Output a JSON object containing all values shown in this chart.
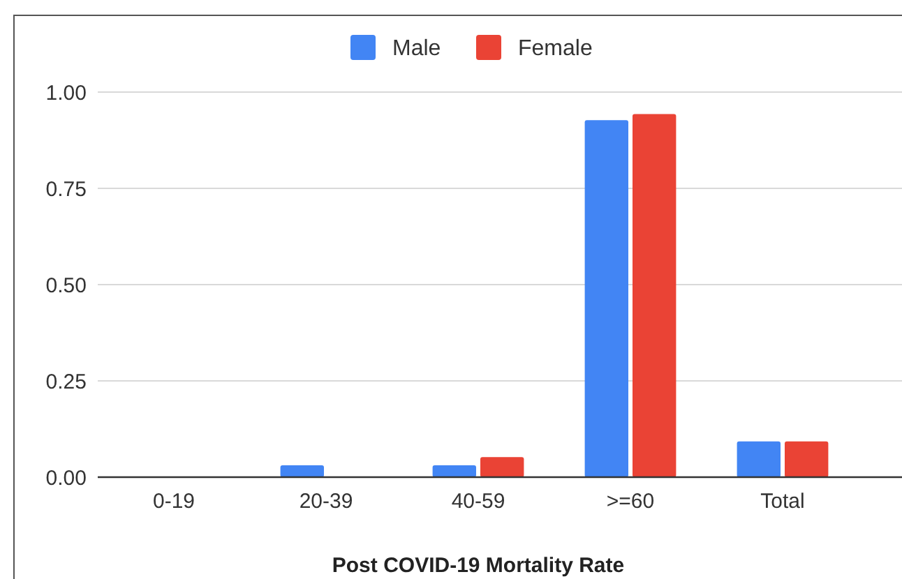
{
  "chart_data": {
    "type": "bar",
    "xlabel": "Post COVID-19 Mortality Rate",
    "categories": [
      "0-19",
      "20-39",
      "40-59",
      ">=60",
      "Total"
    ],
    "series": [
      {
        "name": "Male",
        "color": "#4285f4",
        "values": [
          0,
          0.031,
          0.031,
          0.927,
          0.093
        ]
      },
      {
        "name": "Female",
        "color": "#ea4335",
        "values": [
          0,
          0,
          0.052,
          0.943,
          0.093
        ]
      }
    ],
    "ylim": [
      0,
      1
    ],
    "yticks": [
      {
        "value": 0,
        "label": "0.00"
      },
      {
        "value": 0.25,
        "label": "0.25"
      },
      {
        "value": 0.5,
        "label": "0.50"
      },
      {
        "value": 0.75,
        "label": "0.75"
      },
      {
        "value": 1,
        "label": "1.00"
      }
    ],
    "grid": "y",
    "legend": "top"
  }
}
